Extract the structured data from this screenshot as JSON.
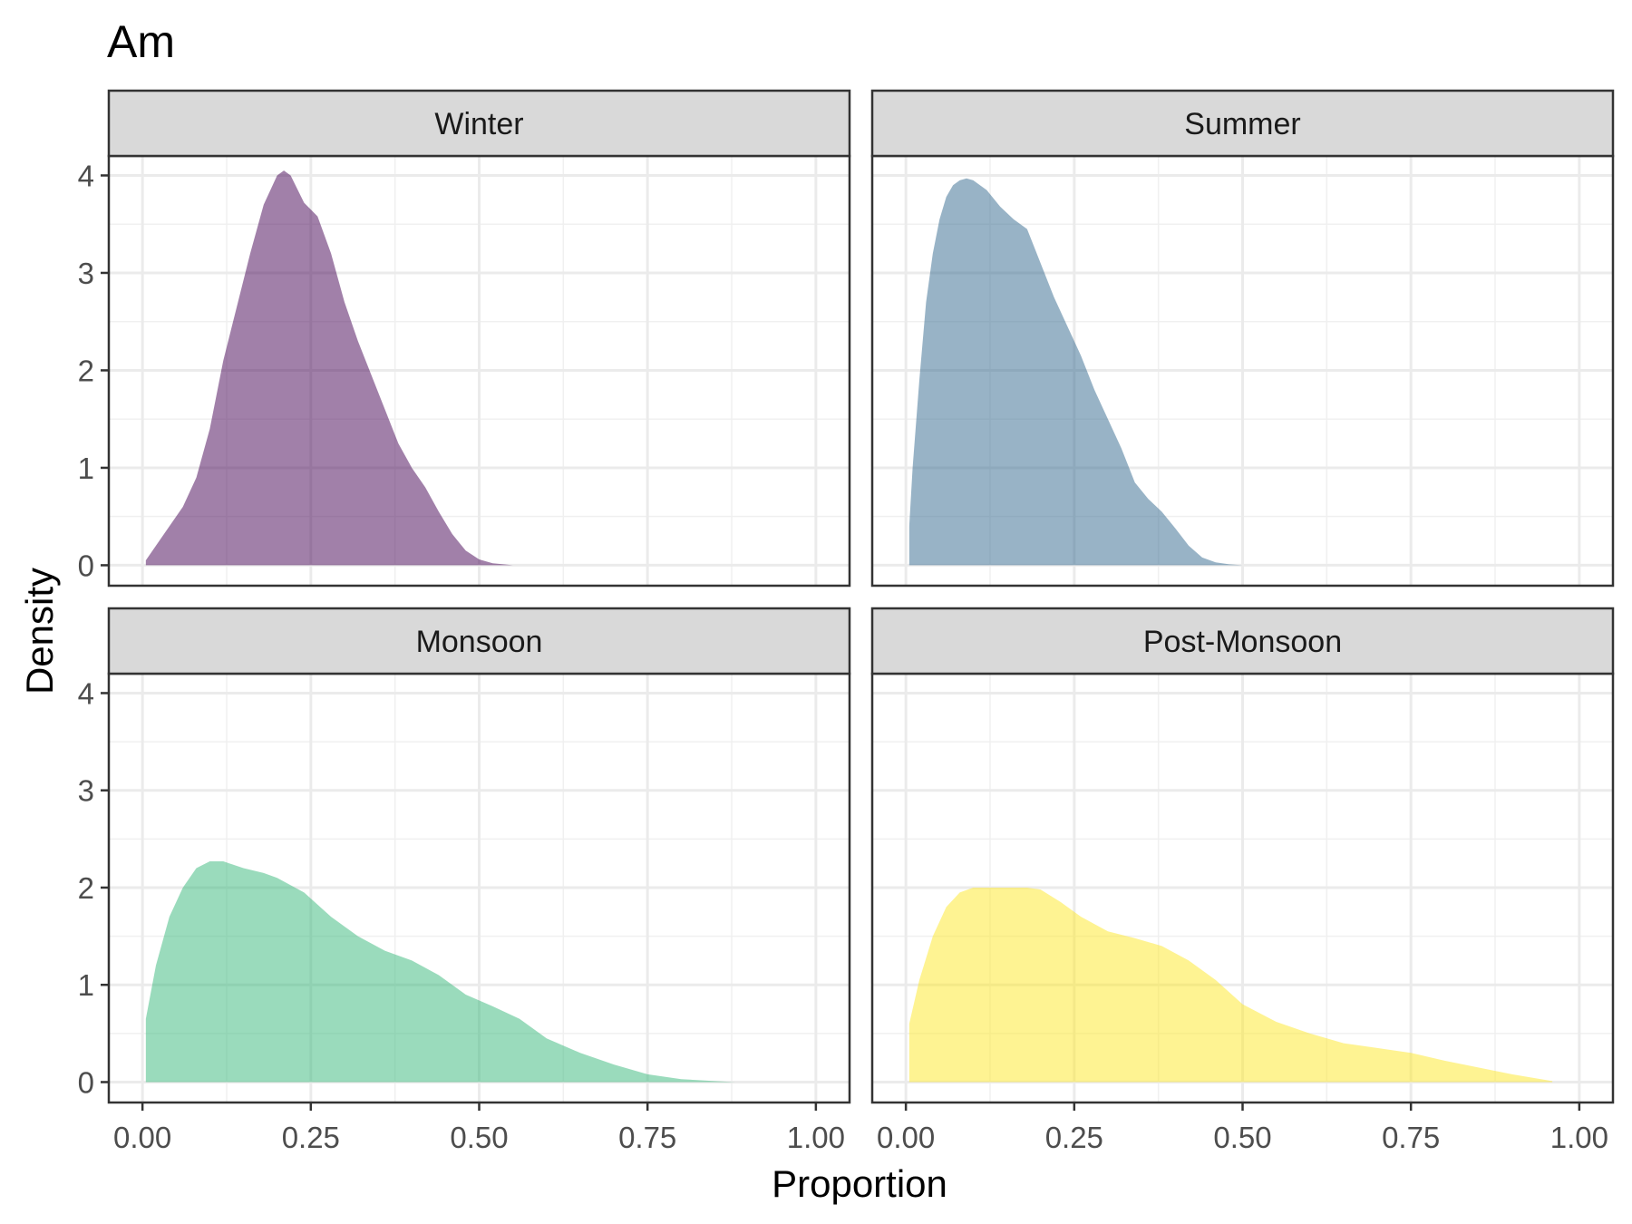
{
  "chart_data": {
    "type": "area",
    "title": "Am",
    "xlabel": "Proportion",
    "ylabel": "Density",
    "xlim": [
      0,
      1
    ],
    "ylim": [
      0,
      4.2
    ],
    "x_ticks": [
      0,
      0.25,
      0.5,
      0.75,
      1
    ],
    "x_tick_labels": [
      "0.00",
      "0.25",
      "0.50",
      "0.75",
      "1.00"
    ],
    "y_ticks": [
      0,
      1,
      2,
      3,
      4
    ],
    "y_tick_labels": [
      "0",
      "1",
      "2",
      "3",
      "4"
    ],
    "grid": true,
    "legend": "none",
    "layout": "2x2 facets",
    "panels": [
      {
        "name": "Winter",
        "color": "#440154",
        "x": [
          0.005,
          0.03,
          0.06,
          0.08,
          0.1,
          0.12,
          0.14,
          0.16,
          0.18,
          0.2,
          0.21,
          0.22,
          0.24,
          0.26,
          0.28,
          0.3,
          0.32,
          0.34,
          0.36,
          0.38,
          0.4,
          0.42,
          0.44,
          0.46,
          0.48,
          0.5,
          0.52,
          0.55
        ],
        "y": [
          0.05,
          0.3,
          0.6,
          0.9,
          1.4,
          2.1,
          2.65,
          3.2,
          3.7,
          4.0,
          4.05,
          4.0,
          3.72,
          3.58,
          3.2,
          2.7,
          2.3,
          1.95,
          1.6,
          1.25,
          1.0,
          0.8,
          0.55,
          0.32,
          0.15,
          0.06,
          0.02,
          0.0
        ]
      },
      {
        "name": "Summer",
        "color": "#31688e",
        "x": [
          0.005,
          0.01,
          0.02,
          0.03,
          0.04,
          0.05,
          0.06,
          0.07,
          0.08,
          0.09,
          0.1,
          0.12,
          0.14,
          0.16,
          0.18,
          0.2,
          0.22,
          0.24,
          0.26,
          0.28,
          0.3,
          0.32,
          0.34,
          0.36,
          0.38,
          0.4,
          0.42,
          0.44,
          0.46,
          0.48,
          0.5
        ],
        "y": [
          0.4,
          1.0,
          1.9,
          2.7,
          3.2,
          3.55,
          3.78,
          3.9,
          3.95,
          3.97,
          3.95,
          3.85,
          3.68,
          3.55,
          3.45,
          3.1,
          2.75,
          2.45,
          2.15,
          1.8,
          1.5,
          1.2,
          0.85,
          0.68,
          0.55,
          0.38,
          0.2,
          0.08,
          0.03,
          0.01,
          0.0
        ]
      },
      {
        "name": "Monsoon",
        "color": "#35b779",
        "x": [
          0.005,
          0.02,
          0.04,
          0.06,
          0.08,
          0.1,
          0.12,
          0.15,
          0.18,
          0.2,
          0.24,
          0.28,
          0.32,
          0.36,
          0.4,
          0.44,
          0.48,
          0.52,
          0.56,
          0.6,
          0.65,
          0.7,
          0.75,
          0.8,
          0.85,
          0.88
        ],
        "y": [
          0.65,
          1.2,
          1.7,
          2.0,
          2.2,
          2.27,
          2.27,
          2.2,
          2.15,
          2.1,
          1.95,
          1.7,
          1.5,
          1.35,
          1.25,
          1.1,
          0.9,
          0.78,
          0.65,
          0.45,
          0.3,
          0.18,
          0.08,
          0.03,
          0.01,
          0.0
        ]
      },
      {
        "name": "Post-Monsoon",
        "color": "#fde725",
        "x": [
          0.005,
          0.02,
          0.04,
          0.06,
          0.08,
          0.1,
          0.12,
          0.15,
          0.18,
          0.2,
          0.23,
          0.26,
          0.3,
          0.34,
          0.38,
          0.42,
          0.46,
          0.5,
          0.55,
          0.6,
          0.65,
          0.7,
          0.75,
          0.8,
          0.85,
          0.9,
          0.96
        ],
        "y": [
          0.6,
          1.05,
          1.5,
          1.8,
          1.95,
          2.0,
          2.0,
          2.0,
          2.0,
          1.98,
          1.85,
          1.7,
          1.55,
          1.48,
          1.4,
          1.25,
          1.05,
          0.8,
          0.62,
          0.5,
          0.4,
          0.35,
          0.3,
          0.22,
          0.15,
          0.08,
          0.01
        ]
      }
    ]
  }
}
